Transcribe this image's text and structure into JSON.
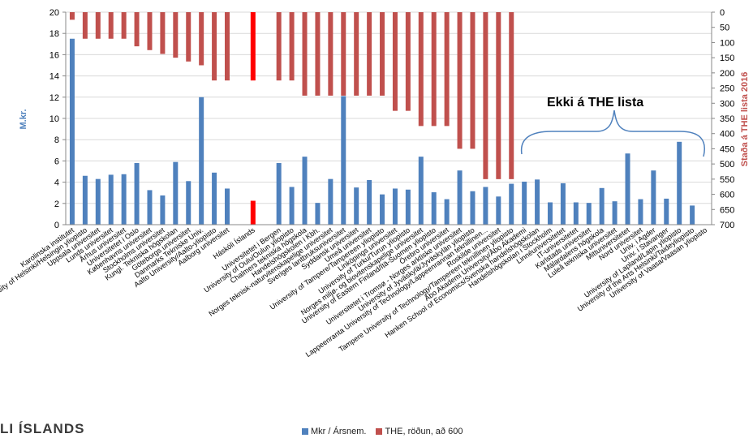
{
  "chart_data": {
    "type": "bar",
    "ylabel_left": "M.kr.",
    "ylabel_right": "Staða á THE lista 2016",
    "left_axis": {
      "min": 0,
      "max": 20,
      "step": 2
    },
    "right_axis": {
      "min": 0,
      "max": 700,
      "step": 50,
      "inverted": true
    },
    "annotation": "Ekki á THE lista",
    "logo_text": "LI ÍSLANDS",
    "colors": {
      "mkr": "#4f81bd",
      "the": "#c0504d",
      "highlight": "#ff0000",
      "bracket": "#4f81bd"
    },
    "series": [
      {
        "name": "Mkr / Ársnem.",
        "axis": "left"
      },
      {
        "name": "THE, röðun, að 600",
        "axis": "right"
      }
    ],
    "categories": [
      "Karolinska institutet",
      "University of Helsinki/Helsingin yliopisto",
      "Uppsala universitet",
      "Lunds universitet",
      "Århus universitet",
      "Universitetet i Oslo",
      "Københavns universitet",
      "Stockholms universitet",
      "Kungl. Tekniska högskolan",
      "Göteborgs universitet",
      "Danmarks Tekniske Univ.",
      "Aalto University/Aalto-yliopisto",
      "Aalborg universitet",
      "",
      "Háskóli Íslands",
      "",
      "Universitetet i Bergen",
      "University of Oulu/Oulun yliopisto",
      "Chalmers tekniska högskola",
      "Handelshögskolen i Kbh.",
      "Norges teknisk-naturvitenskapelige universitet",
      "Sveriges lantbruksuniversitet",
      "Syddansk universitet",
      "Umeå universitet",
      "University of Tampere/Tampereen yliopisto",
      "Linköpings universitet",
      "University of Turku/Turun yliopisto",
      "Norges miljø- og biovitenskapelige universitet",
      "University of Eastern Finland/Itä-Suomen yliopisto",
      "Örebro universitet",
      "Universitetet i Tromsø - Norges arktiske universitet",
      "University of Jyväskylä/Jyväskylän yliopisto",
      "Lappeenranta University of Technology/Lappeenrannan teknillinen...",
      "Roskilde universitet",
      "Tampere University of Technology/Tampereen teknillinen yliopisto",
      "Åbo Akademi University/Åbo Akademi",
      "Hanken School of Economics/Svenska handelshögskolan",
      "Handelshögskolan i Stockholm",
      "Linnéuniversitetet",
      "IT-universitetet",
      "Karlstads universitet",
      "Mälardalens högskola",
      "Luleå tekniska universitet",
      "Mittuniversitetet",
      "Nord universitet",
      "Univ. i Agder",
      "Univ. i Stavanger",
      "University of Lapland/Lapin yliopisto",
      "University of the Arts Helsinki/Taideyliopisto",
      "University of Vaasa/Vaasan yliopisto"
    ],
    "mkr": [
      17.5,
      4.6,
      4.3,
      4.7,
      4.75,
      5.8,
      3.25,
      2.75,
      5.9,
      4.1,
      12.0,
      4.9,
      3.4,
      null,
      2.25,
      null,
      5.8,
      3.55,
      6.4,
      2.05,
      4.3,
      12.1,
      3.5,
      4.2,
      2.85,
      3.4,
      3.3,
      6.4,
      3.05,
      2.4,
      5.1,
      3.15,
      3.55,
      2.65,
      3.85,
      4.05,
      4.25,
      2.1,
      3.9,
      2.1,
      2.05,
      3.45,
      2.2,
      6.7,
      2.4,
      5.1,
      2.45,
      7.8,
      1.8,
      null
    ],
    "the": [
      25,
      87.5,
      87.5,
      87.5,
      87.5,
      112.5,
      125,
      137.5,
      150,
      162.5,
      175,
      225,
      225,
      null,
      225,
      null,
      225,
      225,
      275,
      275,
      275,
      275,
      275,
      275,
      275,
      325,
      325,
      375,
      375,
      375,
      450,
      450,
      550,
      550,
      550,
      null,
      null,
      null,
      null,
      null,
      null,
      null,
      null,
      null,
      null,
      null,
      null,
      null,
      null,
      null
    ],
    "highlight_index": 14
  }
}
